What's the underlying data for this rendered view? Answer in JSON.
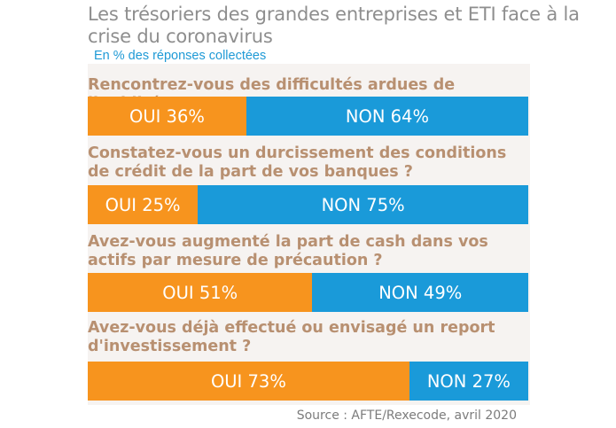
{
  "colors": {
    "oui": "#f7941e",
    "non": "#1a9ad9",
    "question": "#b89071"
  },
  "chart_data": {
    "type": "bar",
    "orientation": "horizontal-stacked-100",
    "title": "Les trésoriers des grandes entreprises et ETI face à la crise du coronavirus",
    "subtitle": "En % des réponses collectées",
    "source": "Source : AFTE/Rexecode, avril 2020",
    "categories": [
      "Rencontrez-vous des difficultés ardues de liquidité",
      "Constatez-vous un durcissement des conditions de crédit de la part de vos banques ?",
      "Avez-vous augmenté la part de cash dans vos actifs par mesure de précaution ?",
      "Avez-vous déjà effectué ou envisagé un report d'investissement ?"
    ],
    "series": [
      {
        "name": "OUI",
        "values": [
          36,
          25,
          51,
          73
        ]
      },
      {
        "name": "NON",
        "values": [
          64,
          75,
          49,
          27
        ]
      }
    ],
    "labels": [
      [
        "OUI 36%",
        "NON 64%"
      ],
      [
        "OUI 25%",
        "NON 75%"
      ],
      [
        "OUI 51%",
        "NON 49%"
      ],
      [
        "OUI 73%",
        "NON 27%"
      ]
    ]
  }
}
